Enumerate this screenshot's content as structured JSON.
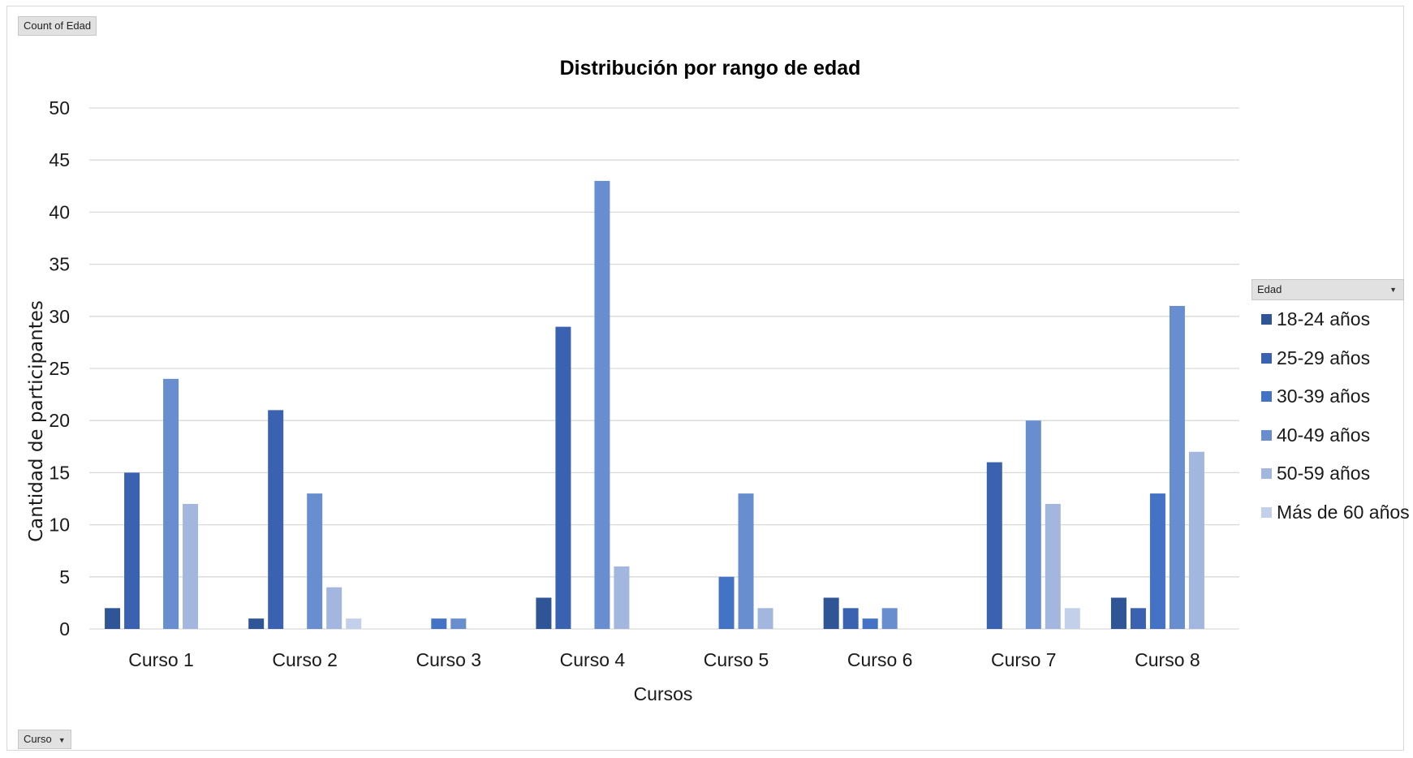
{
  "pivot": {
    "value_field": "Count of Edad",
    "row_field": "Curso",
    "legend_field": "Edad"
  },
  "chart_data": {
    "type": "bar",
    "title": "Distribución por rango de edad",
    "xlabel": "Cursos",
    "ylabel": "Cantidad de participantes",
    "ylim": [
      0,
      50
    ],
    "yticks": [
      0,
      5,
      10,
      15,
      20,
      25,
      30,
      35,
      40,
      45,
      50
    ],
    "grid": true,
    "legend_position": "right",
    "categories": [
      "Curso 1",
      "Curso 2",
      "Curso 3",
      "Curso 4",
      "Curso 5",
      "Curso 6",
      "Curso 7",
      "Curso 8"
    ],
    "series": [
      {
        "name": "18-24 años",
        "color": "#2f5597",
        "values": [
          2,
          1,
          0,
          3,
          0,
          3,
          0,
          3
        ]
      },
      {
        "name": "25-29 años",
        "color": "#3a62b0",
        "values": [
          15,
          21,
          0,
          29,
          0,
          2,
          16,
          2
        ]
      },
      {
        "name": "30-39 años",
        "color": "#4472c4",
        "values": [
          0,
          0,
          1,
          0,
          5,
          1,
          0,
          13
        ]
      },
      {
        "name": "40-49 años",
        "color": "#698ed0",
        "values": [
          24,
          13,
          1,
          43,
          13,
          2,
          20,
          31
        ]
      },
      {
        "name": "50-59 años",
        "color": "#a3b7de",
        "values": [
          12,
          4,
          0,
          6,
          2,
          0,
          12,
          17
        ]
      },
      {
        "name": "Más de 60 años",
        "color": "#c2d0ea",
        "values": [
          0,
          1,
          0,
          0,
          0,
          0,
          2,
          0
        ]
      }
    ]
  }
}
